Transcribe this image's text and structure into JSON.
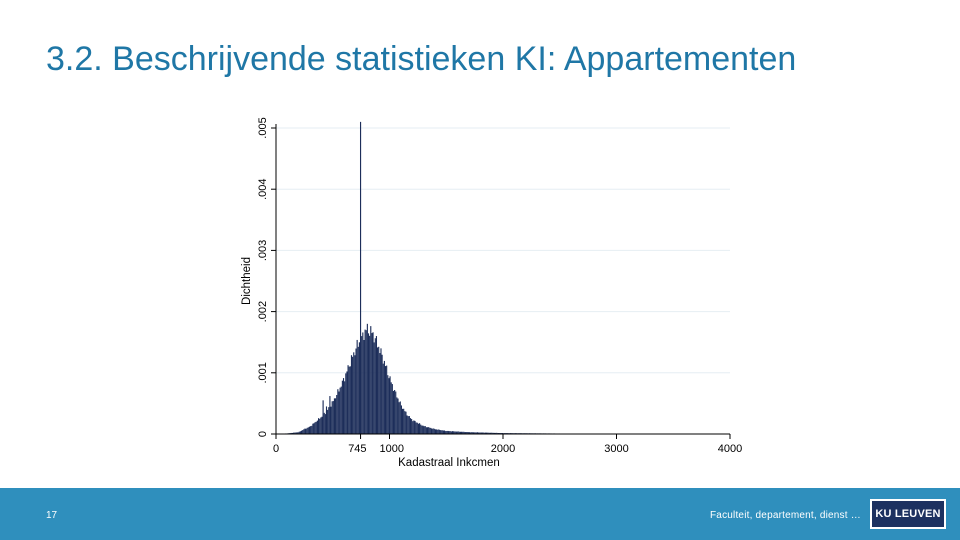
{
  "slide": {
    "title": "3.2. Beschrijvende statistieken KI: Appartementen",
    "page_number": "17",
    "footer_text": "Faculteit, departement, dienst …",
    "logo_text": "KU LEUVEN",
    "colors": {
      "title": "#1f77a6",
      "footer_band": "#2f8fbd",
      "logo_bg": "#1d3160",
      "bars": "#1d2e5a",
      "grid": "#e6eef3"
    }
  },
  "chart_data": {
    "type": "bar",
    "subtype": "histogram",
    "title": "",
    "xlabel": "Kadastraal Inkcmen",
    "ylabel": "Dichtheid",
    "xlim": [
      0,
      4000
    ],
    "ylim": [
      0,
      0.005
    ],
    "x_ticks": [
      0,
      745,
      1000,
      2000,
      3000,
      4000
    ],
    "x_tick_labels": [
      "0",
      "745",
      "1000",
      "2000",
      "3000",
      "4000"
    ],
    "y_ticks": [
      0,
      0.001,
      0.002,
      0.003,
      0.004,
      0.005
    ],
    "y_tick_labels": [
      "0",
      ".001",
      ".002",
      ".003",
      ".004",
      ".005"
    ],
    "grid": true,
    "bin_width": 10,
    "bins": [
      {
        "x": 0,
        "y": 0
      },
      {
        "x": 100,
        "y": 1e-05
      },
      {
        "x": 200,
        "y": 3e-05
      },
      {
        "x": 250,
        "y": 8e-05
      },
      {
        "x": 300,
        "y": 0.00012
      },
      {
        "x": 350,
        "y": 0.0002
      },
      {
        "x": 400,
        "y": 0.00028
      },
      {
        "x": 450,
        "y": 0.00038
      },
      {
        "x": 500,
        "y": 0.00052
      },
      {
        "x": 550,
        "y": 0.0007
      },
      {
        "x": 600,
        "y": 0.0009
      },
      {
        "x": 650,
        "y": 0.00115
      },
      {
        "x": 700,
        "y": 0.00138
      },
      {
        "x": 730,
        "y": 0.0015
      },
      {
        "x": 745,
        "y": 0.0051
      },
      {
        "x": 760,
        "y": 0.0016
      },
      {
        "x": 800,
        "y": 0.00172
      },
      {
        "x": 850,
        "y": 0.00165
      },
      {
        "x": 900,
        "y": 0.00145
      },
      {
        "x": 950,
        "y": 0.0012
      },
      {
        "x": 1000,
        "y": 0.00092
      },
      {
        "x": 1050,
        "y": 0.00068
      },
      {
        "x": 1100,
        "y": 0.00048
      },
      {
        "x": 1150,
        "y": 0.00033
      },
      {
        "x": 1200,
        "y": 0.00023
      },
      {
        "x": 1300,
        "y": 0.00013
      },
      {
        "x": 1400,
        "y": 8e-05
      },
      {
        "x": 1500,
        "y": 5e-05
      },
      {
        "x": 1700,
        "y": 3e-05
      },
      {
        "x": 2000,
        "y": 1.5e-05
      },
      {
        "x": 2500,
        "y": 8e-06
      },
      {
        "x": 3000,
        "y": 4e-06
      },
      {
        "x": 3500,
        "y": 2e-06
      },
      {
        "x": 4000,
        "y": 0
      }
    ],
    "spike_bins": [
      {
        "x": 410,
        "y": 0.00055
      },
      {
        "x": 440,
        "y": 0.00045
      },
      {
        "x": 470,
        "y": 0.00062
      }
    ]
  }
}
